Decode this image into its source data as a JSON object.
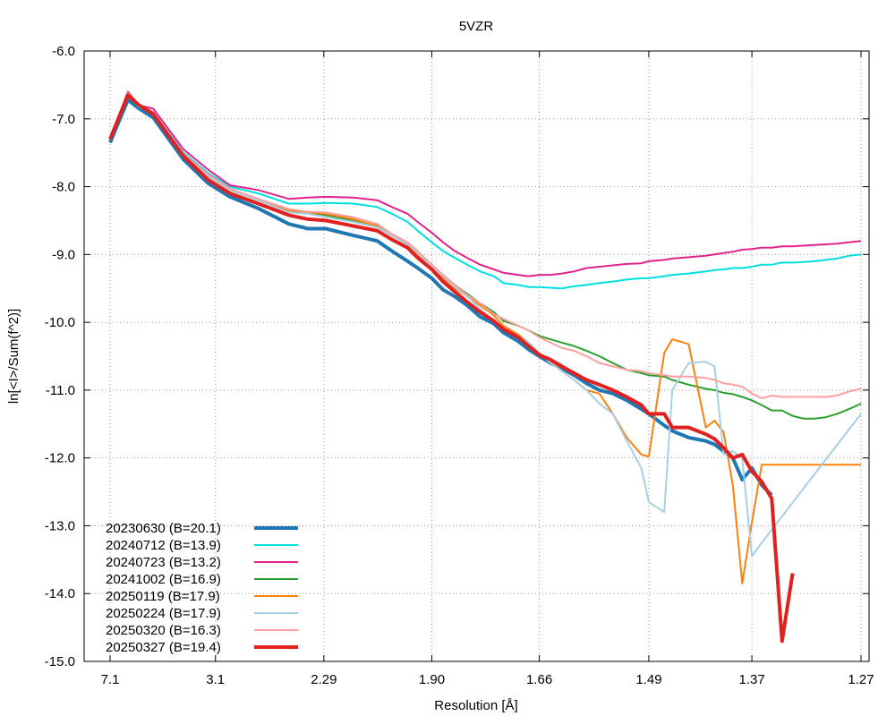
{
  "chart_data": {
    "type": "line",
    "title": "5VZR",
    "xlabel": "Resolution [Å]",
    "ylabel": "ln[<I>/Sum(f^2)]",
    "x_scale": "1/d^2",
    "xlim": [
      7.1,
      1.27
    ],
    "ylim": [
      -15.0,
      -6.0
    ],
    "grid": true,
    "legend_position": "bottom-left",
    "x_ticks": [
      {
        "value": 7.1,
        "label": "7.1"
      },
      {
        "value": 3.1,
        "label": "3.1"
      },
      {
        "value": 2.29,
        "label": "2.29"
      },
      {
        "value": 1.9,
        "label": "1.90"
      },
      {
        "value": 1.66,
        "label": "1.66"
      },
      {
        "value": 1.49,
        "label": "1.49"
      },
      {
        "value": 1.37,
        "label": "1.37"
      },
      {
        "value": 1.27,
        "label": "1.27"
      }
    ],
    "y_ticks": [
      {
        "value": -6.0,
        "label": "-6.0"
      },
      {
        "value": -7.0,
        "label": "-7.0"
      },
      {
        "value": -8.0,
        "label": "-8.0"
      },
      {
        "value": -9.0,
        "label": "-9.0"
      },
      {
        "value": -10.0,
        "label": "-10.0"
      },
      {
        "value": -11.0,
        "label": "-11.0"
      },
      {
        "value": -12.0,
        "label": "-12.0"
      },
      {
        "value": -13.0,
        "label": "-13.0"
      },
      {
        "value": -14.0,
        "label": "-14.0"
      },
      {
        "value": -15.0,
        "label": "-15.0"
      }
    ],
    "series": [
      {
        "name": "20230630 (B=20.1)",
        "color": "#1f77b4",
        "width": 4,
        "x": [
          7.1,
          5.42,
          4.82,
          4.29,
          3.57,
          3.19,
          2.94,
          2.69,
          2.48,
          2.37,
          2.28,
          2.16,
          2.07,
          2.02,
          1.97,
          1.94,
          1.9,
          1.87,
          1.84,
          1.81,
          1.78,
          1.75,
          1.73,
          1.7,
          1.68,
          1.66,
          1.64,
          1.62,
          1.6,
          1.58,
          1.56,
          1.54,
          1.52,
          1.5,
          1.49,
          1.47,
          1.46,
          1.44,
          1.42,
          1.41,
          1.4,
          1.39,
          1.38,
          1.37,
          1.36,
          1.35
        ],
        "y": [
          -7.35,
          -6.72,
          -6.85,
          -6.98,
          -7.6,
          -7.95,
          -8.15,
          -8.32,
          -8.55,
          -8.62,
          -8.62,
          -8.72,
          -8.8,
          -8.95,
          -9.1,
          -9.2,
          -9.35,
          -9.52,
          -9.62,
          -9.75,
          -9.92,
          -10.02,
          -10.15,
          -10.28,
          -10.4,
          -10.5,
          -10.6,
          -10.68,
          -10.78,
          -10.9,
          -11.0,
          -11.05,
          -11.15,
          -11.28,
          -11.35,
          -11.52,
          -11.6,
          -11.7,
          -11.75,
          -11.8,
          -11.9,
          -12.0,
          -12.32,
          -12.15,
          -12.4,
          -12.55
        ]
      },
      {
        "name": "20240712 (B=13.9)",
        "color": "#00e0e0",
        "width": 2,
        "x": [
          7.1,
          5.42,
          4.82,
          4.29,
          3.57,
          3.19,
          2.94,
          2.69,
          2.48,
          2.37,
          2.28,
          2.16,
          2.07,
          2.02,
          1.97,
          1.94,
          1.9,
          1.87,
          1.84,
          1.81,
          1.78,
          1.75,
          1.73,
          1.7,
          1.68,
          1.66,
          1.64,
          1.62,
          1.6,
          1.58,
          1.56,
          1.54,
          1.52,
          1.5,
          1.49,
          1.47,
          1.46,
          1.44,
          1.42,
          1.41,
          1.4,
          1.39,
          1.38,
          1.37,
          1.36,
          1.35,
          1.34,
          1.33,
          1.32,
          1.31,
          1.3,
          1.29,
          1.28,
          1.27
        ],
        "y": [
          -7.3,
          -6.65,
          -6.83,
          -6.9,
          -7.5,
          -7.8,
          -8.0,
          -8.1,
          -8.25,
          -8.25,
          -8.24,
          -8.25,
          -8.3,
          -8.4,
          -8.52,
          -8.65,
          -8.82,
          -8.95,
          -9.05,
          -9.15,
          -9.25,
          -9.32,
          -9.42,
          -9.45,
          -9.48,
          -9.48,
          -9.49,
          -9.5,
          -9.47,
          -9.45,
          -9.42,
          -9.4,
          -9.37,
          -9.35,
          -9.35,
          -9.32,
          -9.3,
          -9.28,
          -9.25,
          -9.23,
          -9.22,
          -9.2,
          -9.2,
          -9.18,
          -9.15,
          -9.15,
          -9.12,
          -9.12,
          -9.11,
          -9.1,
          -9.08,
          -9.06,
          -9.02,
          -9.0
        ]
      },
      {
        "name": "20240723 (B=13.2)",
        "color": "#e0248c",
        "width": 2,
        "x": [
          7.1,
          5.42,
          4.82,
          4.29,
          3.57,
          3.19,
          2.94,
          2.69,
          2.48,
          2.37,
          2.28,
          2.16,
          2.07,
          2.02,
          1.97,
          1.94,
          1.9,
          1.87,
          1.84,
          1.81,
          1.78,
          1.75,
          1.73,
          1.7,
          1.68,
          1.66,
          1.64,
          1.62,
          1.6,
          1.58,
          1.56,
          1.54,
          1.52,
          1.5,
          1.49,
          1.47,
          1.46,
          1.44,
          1.42,
          1.41,
          1.4,
          1.39,
          1.38,
          1.37,
          1.36,
          1.35,
          1.34,
          1.33,
          1.32,
          1.31,
          1.3,
          1.29,
          1.28,
          1.27
        ],
        "y": [
          -7.3,
          -6.6,
          -6.8,
          -6.85,
          -7.45,
          -7.75,
          -7.98,
          -8.05,
          -8.18,
          -8.16,
          -8.15,
          -8.16,
          -8.2,
          -8.3,
          -8.4,
          -8.52,
          -8.68,
          -8.82,
          -8.95,
          -9.05,
          -9.15,
          -9.22,
          -9.27,
          -9.3,
          -9.32,
          -9.3,
          -9.3,
          -9.28,
          -9.25,
          -9.2,
          -9.18,
          -9.16,
          -9.14,
          -9.13,
          -9.1,
          -9.08,
          -9.06,
          -9.04,
          -9.02,
          -9.0,
          -8.98,
          -8.96,
          -8.93,
          -8.92,
          -8.9,
          -8.9,
          -8.88,
          -8.88,
          -8.87,
          -8.86,
          -8.85,
          -8.84,
          -8.82,
          -8.8
        ]
      },
      {
        "name": "20241002 (B=16.9)",
        "color": "#2ca02c",
        "width": 2,
        "x": [
          7.1,
          5.42,
          4.82,
          4.29,
          3.57,
          3.19,
          2.94,
          2.69,
          2.48,
          2.37,
          2.28,
          2.16,
          2.07,
          2.02,
          1.97,
          1.94,
          1.9,
          1.87,
          1.84,
          1.81,
          1.78,
          1.75,
          1.73,
          1.7,
          1.68,
          1.66,
          1.64,
          1.62,
          1.6,
          1.58,
          1.56,
          1.54,
          1.52,
          1.5,
          1.49,
          1.47,
          1.46,
          1.44,
          1.42,
          1.41,
          1.4,
          1.39,
          1.38,
          1.37,
          1.36,
          1.35,
          1.34,
          1.33,
          1.32,
          1.31,
          1.3,
          1.29,
          1.28,
          1.27
        ],
        "y": [
          -7.3,
          -6.62,
          -6.8,
          -6.92,
          -7.55,
          -7.85,
          -8.05,
          -8.2,
          -8.35,
          -8.38,
          -8.42,
          -8.5,
          -8.6,
          -8.72,
          -8.85,
          -9.0,
          -9.2,
          -9.3,
          -9.45,
          -9.58,
          -9.72,
          -9.85,
          -9.98,
          -10.05,
          -10.12,
          -10.2,
          -10.25,
          -10.3,
          -10.35,
          -10.42,
          -10.5,
          -10.6,
          -10.7,
          -10.75,
          -10.78,
          -10.8,
          -10.85,
          -10.92,
          -10.98,
          -11.0,
          -11.04,
          -11.06,
          -11.1,
          -11.15,
          -11.22,
          -11.3,
          -11.3,
          -11.38,
          -11.42,
          -11.42,
          -11.4,
          -11.35,
          -11.28,
          -11.2
        ]
      },
      {
        "name": "20250119 (B=17.9)",
        "color": "#ff7f0e",
        "width": 2,
        "x": [
          7.1,
          5.42,
          4.82,
          4.29,
          3.57,
          3.19,
          2.94,
          2.69,
          2.48,
          2.37,
          2.28,
          2.16,
          2.07,
          2.02,
          1.97,
          1.94,
          1.9,
          1.87,
          1.84,
          1.81,
          1.78,
          1.75,
          1.73,
          1.7,
          1.68,
          1.66,
          1.64,
          1.62,
          1.6,
          1.58,
          1.56,
          1.54,
          1.52,
          1.5,
          1.49,
          1.47,
          1.46,
          1.44,
          1.42,
          1.41,
          1.4,
          1.39,
          1.38,
          1.37,
          1.36,
          1.35,
          1.34,
          1.27
        ],
        "y": [
          -7.3,
          -6.62,
          -6.8,
          -6.92,
          -7.55,
          -7.85,
          -8.05,
          -8.2,
          -8.35,
          -8.38,
          -8.4,
          -8.48,
          -8.58,
          -8.72,
          -8.85,
          -9.0,
          -9.2,
          -9.35,
          -9.5,
          -9.62,
          -9.75,
          -9.9,
          -10.05,
          -10.18,
          -10.3,
          -10.45,
          -10.58,
          -10.72,
          -10.85,
          -11.0,
          -11.05,
          -11.35,
          -11.7,
          -11.95,
          -11.98,
          -10.45,
          -10.25,
          -10.32,
          -11.55,
          -11.45,
          -11.62,
          -12.4,
          -13.85,
          -12.95,
          -12.1,
          -12.1,
          -12.1,
          -12.1
        ]
      },
      {
        "name": "20250224 (B=17.9)",
        "color": "#a6d0e4",
        "width": 2,
        "x": [
          7.1,
          5.42,
          4.82,
          4.29,
          3.57,
          3.19,
          2.94,
          2.69,
          2.48,
          2.37,
          2.28,
          2.16,
          2.07,
          2.02,
          1.97,
          1.94,
          1.9,
          1.87,
          1.84,
          1.81,
          1.78,
          1.75,
          1.73,
          1.7,
          1.68,
          1.66,
          1.64,
          1.62,
          1.6,
          1.58,
          1.56,
          1.54,
          1.52,
          1.5,
          1.49,
          1.47,
          1.46,
          1.44,
          1.42,
          1.41,
          1.4,
          1.39,
          1.38,
          1.37,
          1.36,
          1.27
        ],
        "y": [
          -7.3,
          -6.62,
          -6.8,
          -6.9,
          -7.55,
          -7.85,
          -8.05,
          -8.2,
          -8.38,
          -8.4,
          -8.45,
          -8.52,
          -8.6,
          -8.72,
          -8.85,
          -8.98,
          -9.18,
          -9.32,
          -9.48,
          -9.62,
          -9.8,
          -9.98,
          -10.1,
          -10.2,
          -10.3,
          -10.45,
          -10.6,
          -10.72,
          -10.85,
          -11.0,
          -11.2,
          -11.35,
          -11.75,
          -12.15,
          -12.65,
          -12.8,
          -11.0,
          -10.6,
          -10.58,
          -10.65,
          -11.95,
          -11.9,
          -12.0,
          -13.45,
          -13.25,
          -11.35
        ]
      },
      {
        "name": "20250320 (B=16.3)",
        "color": "#ff9f9f",
        "width": 2,
        "x": [
          7.1,
          5.42,
          4.82,
          4.29,
          3.57,
          3.19,
          2.94,
          2.69,
          2.48,
          2.37,
          2.28,
          2.16,
          2.07,
          2.02,
          1.97,
          1.94,
          1.9,
          1.87,
          1.84,
          1.81,
          1.78,
          1.75,
          1.73,
          1.7,
          1.68,
          1.66,
          1.64,
          1.62,
          1.6,
          1.58,
          1.56,
          1.54,
          1.52,
          1.5,
          1.49,
          1.47,
          1.46,
          1.44,
          1.42,
          1.41,
          1.4,
          1.39,
          1.38,
          1.37,
          1.36,
          1.35,
          1.34,
          1.33,
          1.32,
          1.31,
          1.3,
          1.29,
          1.28,
          1.27
        ],
        "y": [
          -7.3,
          -6.62,
          -6.8,
          -6.9,
          -7.52,
          -7.82,
          -8.03,
          -8.18,
          -8.33,
          -8.37,
          -8.38,
          -8.45,
          -8.55,
          -8.7,
          -8.82,
          -8.95,
          -9.15,
          -9.3,
          -9.45,
          -9.6,
          -9.72,
          -9.88,
          -9.95,
          -10.05,
          -10.12,
          -10.22,
          -10.3,
          -10.38,
          -10.42,
          -10.5,
          -10.6,
          -10.65,
          -10.7,
          -10.72,
          -10.75,
          -10.78,
          -10.8,
          -10.8,
          -10.82,
          -10.85,
          -10.9,
          -10.92,
          -10.95,
          -11.05,
          -11.12,
          -11.08,
          -11.1,
          -11.1,
          -11.1,
          -11.1,
          -11.1,
          -11.08,
          -11.02,
          -10.98
        ]
      },
      {
        "name": "20250327 (B=19.4)",
        "color": "#e0211f",
        "width": 4,
        "x": [
          7.1,
          5.42,
          4.82,
          4.29,
          3.57,
          3.19,
          2.94,
          2.69,
          2.48,
          2.37,
          2.28,
          2.16,
          2.07,
          2.02,
          1.97,
          1.94,
          1.9,
          1.87,
          1.84,
          1.81,
          1.78,
          1.75,
          1.73,
          1.7,
          1.68,
          1.66,
          1.64,
          1.62,
          1.6,
          1.58,
          1.56,
          1.54,
          1.52,
          1.5,
          1.49,
          1.47,
          1.46,
          1.44,
          1.42,
          1.41,
          1.4,
          1.39,
          1.38,
          1.37,
          1.36,
          1.35,
          1.34,
          1.33
        ],
        "y": [
          -7.3,
          -6.65,
          -6.8,
          -6.93,
          -7.55,
          -7.9,
          -8.1,
          -8.25,
          -8.42,
          -8.48,
          -8.5,
          -8.58,
          -8.65,
          -8.78,
          -8.9,
          -9.05,
          -9.22,
          -9.4,
          -9.55,
          -9.7,
          -9.85,
          -9.98,
          -10.1,
          -10.22,
          -10.35,
          -10.48,
          -10.55,
          -10.65,
          -10.75,
          -10.85,
          -10.92,
          -11.0,
          -11.1,
          -11.22,
          -11.35,
          -11.35,
          -11.55,
          -11.55,
          -11.65,
          -11.72,
          -11.85,
          -12.0,
          -11.95,
          -12.2,
          -12.35,
          -12.6,
          -14.7,
          -13.7
        ]
      }
    ]
  }
}
